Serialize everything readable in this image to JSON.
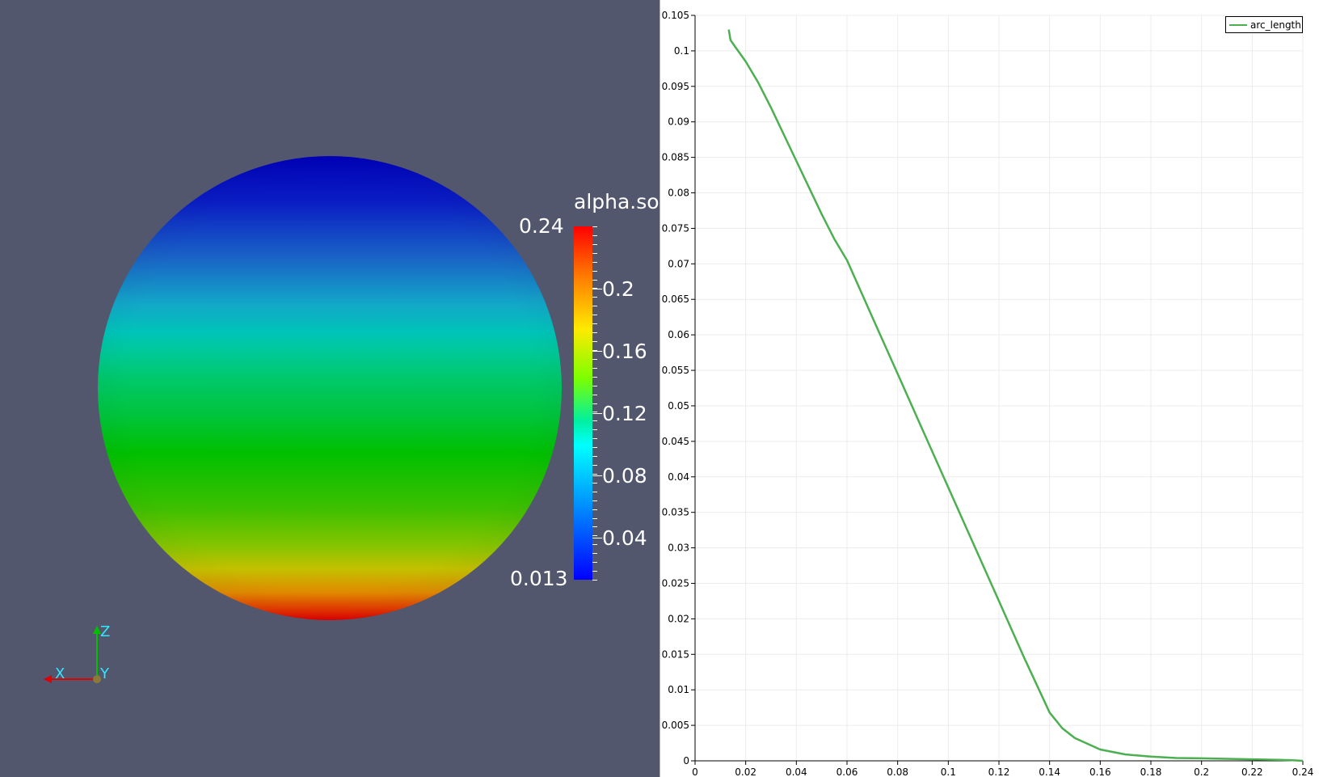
{
  "render_view": {
    "colorbar": {
      "title": "alpha.so",
      "max_label": "0.24",
      "min_label": "0.013",
      "tick_labels": [
        "0.2",
        "0.16",
        "0.12",
        "0.08",
        "0.04"
      ],
      "range": [
        0.013,
        0.24
      ],
      "colors": [
        "#0000ff",
        "#00ffff",
        "#00c000",
        "#ffea00",
        "#ff0000"
      ]
    },
    "axes_triad": {
      "x_label": "X",
      "y_label": "Y",
      "z_label": "Z",
      "x_color": "#e00000",
      "y_color": "#ffff00",
      "z_color": "#00c000",
      "label_color": "#33e6ff"
    },
    "background_color": "#52576e"
  },
  "chart_data": {
    "type": "line",
    "title": "",
    "xlabel": "",
    "ylabel": "",
    "xlim": [
      0,
      0.24
    ],
    "ylim": [
      0,
      0.105
    ],
    "x_ticks": [
      "0",
      "0.02",
      "0.04",
      "0.06",
      "0.08",
      "0.1",
      "0.12",
      "0.14",
      "0.16",
      "0.18",
      "0.2",
      "0.22",
      "0.24"
    ],
    "y_ticks": [
      "0",
      "0.005",
      "0.01",
      "0.015",
      "0.02",
      "0.025",
      "0.03",
      "0.035",
      "0.04",
      "0.045",
      "0.05",
      "0.055",
      "0.06",
      "0.065",
      "0.07",
      "0.075",
      "0.08",
      "0.085",
      "0.09",
      "0.095",
      "0.1",
      "0.105"
    ],
    "grid": true,
    "legend": "top-right",
    "series": [
      {
        "name": "arc_length",
        "color": "#4caf50",
        "x": [
          0.0133,
          0.014,
          0.016,
          0.02,
          0.025,
          0.03,
          0.04,
          0.05,
          0.055,
          0.06,
          0.065,
          0.07,
          0.08,
          0.09,
          0.1,
          0.11,
          0.12,
          0.13,
          0.14,
          0.145,
          0.15,
          0.16,
          0.17,
          0.18,
          0.19,
          0.2,
          0.21,
          0.22,
          0.23,
          0.235,
          0.238,
          0.24
        ],
        "y": [
          0.103,
          0.1015,
          0.1005,
          0.0985,
          0.0955,
          0.092,
          0.0845,
          0.077,
          0.0735,
          0.0705,
          0.0665,
          0.0625,
          0.0545,
          0.0465,
          0.0385,
          0.0305,
          0.0225,
          0.0145,
          0.0068,
          0.0046,
          0.0032,
          0.0016,
          0.0009,
          0.0006,
          0.0004,
          0.00035,
          0.00028,
          0.00022,
          0.00015,
          0.0001,
          5e-05,
          0.0
        ]
      }
    ]
  }
}
